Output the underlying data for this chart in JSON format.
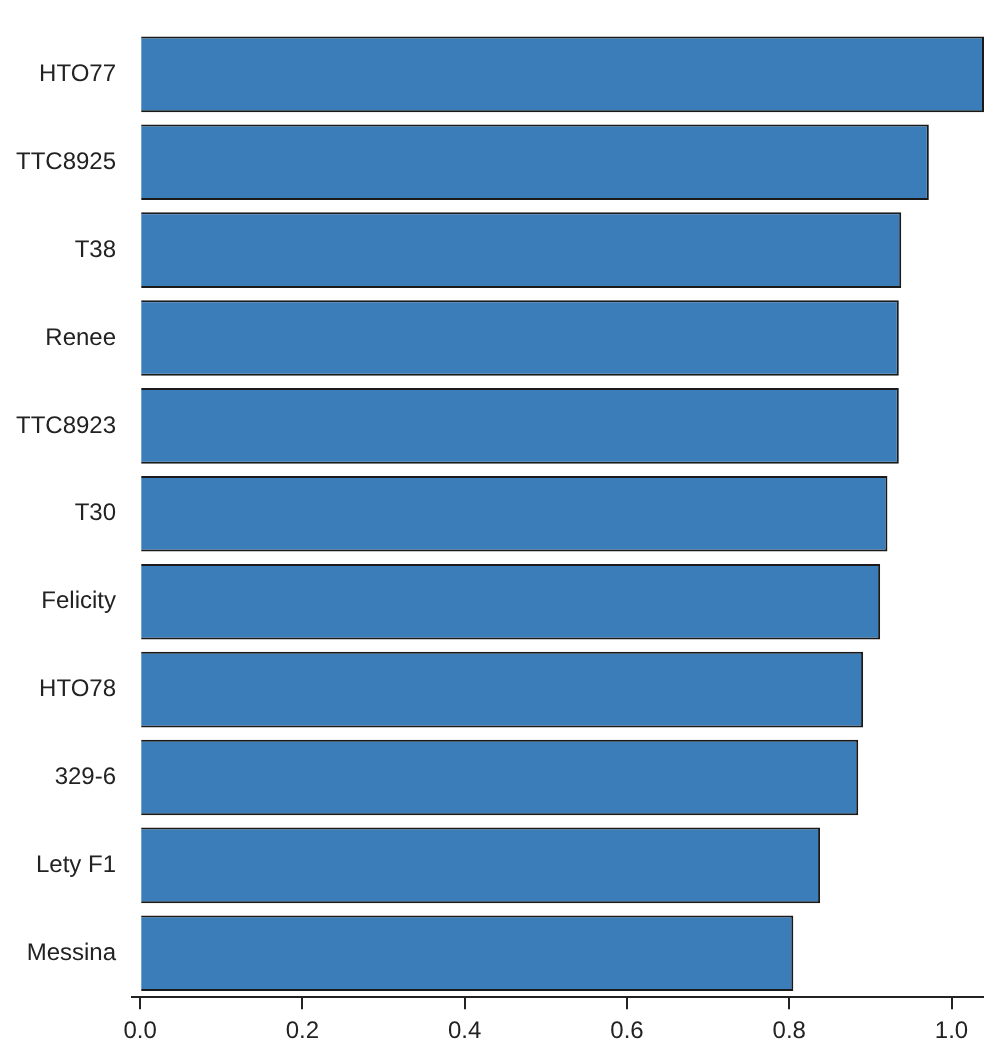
{
  "chart_data": {
    "type": "bar",
    "orientation": "horizontal",
    "categories": [
      "HTO77",
      "TTC8925",
      "T38",
      "Renee",
      "TTC8923",
      "T30",
      "Felicity",
      "HTO78",
      "329-6",
      "Lety F1",
      "Messina"
    ],
    "values": [
      1.04,
      0.972,
      0.938,
      0.935,
      0.935,
      0.921,
      0.912,
      0.891,
      0.885,
      0.838,
      0.805
    ],
    "color": "#3a7db9",
    "xlim": [
      -0.01,
      1.04
    ],
    "xticks": [
      {
        "value": 0,
        "label": "0.0"
      },
      0.2,
      0.4,
      0.6,
      0.8,
      {
        "value": 1,
        "label": "1.0"
      }
    ],
    "grid": false,
    "legend": false
  }
}
